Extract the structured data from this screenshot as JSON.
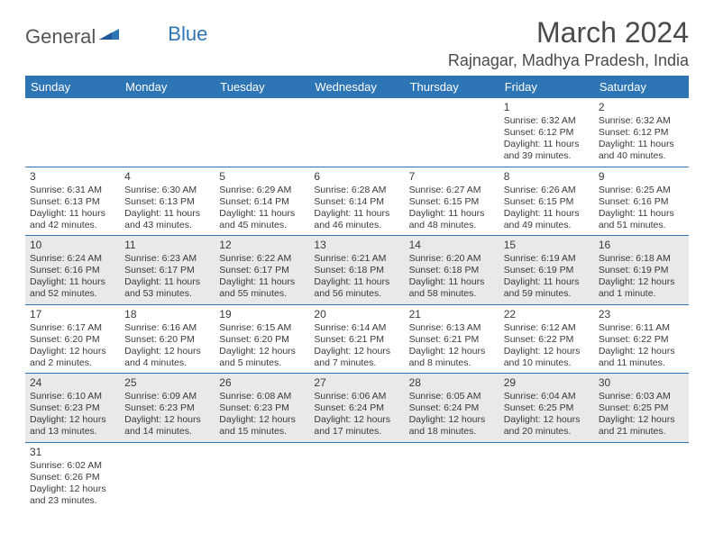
{
  "logo": {
    "text1": "General",
    "text2": "Blue"
  },
  "title": "March 2024",
  "location": "Rajnagar, Madhya Pradesh, India",
  "colors": {
    "header_bg": "#2e75b6",
    "header_text": "#ffffff",
    "row_alt_bg": "#e9e9e9",
    "border": "#2e75b6",
    "text": "#3a3a3a",
    "logo_gray": "#555555",
    "logo_blue": "#2e75b6"
  },
  "typography": {
    "title_fontsize": 32,
    "location_fontsize": 18,
    "dayheader_fontsize": 13,
    "cell_fontsize": 10.5,
    "daynum_fontsize": 12
  },
  "day_headers": [
    "Sunday",
    "Monday",
    "Tuesday",
    "Wednesday",
    "Thursday",
    "Friday",
    "Saturday"
  ],
  "weeks": [
    [
      null,
      null,
      null,
      null,
      null,
      {
        "n": "1",
        "sr": "6:32 AM",
        "ss": "6:12 PM",
        "dl": "11 hours and 39 minutes."
      },
      {
        "n": "2",
        "sr": "6:32 AM",
        "ss": "6:12 PM",
        "dl": "11 hours and 40 minutes."
      }
    ],
    [
      {
        "n": "3",
        "sr": "6:31 AM",
        "ss": "6:13 PM",
        "dl": "11 hours and 42 minutes."
      },
      {
        "n": "4",
        "sr": "6:30 AM",
        "ss": "6:13 PM",
        "dl": "11 hours and 43 minutes."
      },
      {
        "n": "5",
        "sr": "6:29 AM",
        "ss": "6:14 PM",
        "dl": "11 hours and 45 minutes."
      },
      {
        "n": "6",
        "sr": "6:28 AM",
        "ss": "6:14 PM",
        "dl": "11 hours and 46 minutes."
      },
      {
        "n": "7",
        "sr": "6:27 AM",
        "ss": "6:15 PM",
        "dl": "11 hours and 48 minutes."
      },
      {
        "n": "8",
        "sr": "6:26 AM",
        "ss": "6:15 PM",
        "dl": "11 hours and 49 minutes."
      },
      {
        "n": "9",
        "sr": "6:25 AM",
        "ss": "6:16 PM",
        "dl": "11 hours and 51 minutes."
      }
    ],
    [
      {
        "n": "10",
        "sr": "6:24 AM",
        "ss": "6:16 PM",
        "dl": "11 hours and 52 minutes."
      },
      {
        "n": "11",
        "sr": "6:23 AM",
        "ss": "6:17 PM",
        "dl": "11 hours and 53 minutes."
      },
      {
        "n": "12",
        "sr": "6:22 AM",
        "ss": "6:17 PM",
        "dl": "11 hours and 55 minutes."
      },
      {
        "n": "13",
        "sr": "6:21 AM",
        "ss": "6:18 PM",
        "dl": "11 hours and 56 minutes."
      },
      {
        "n": "14",
        "sr": "6:20 AM",
        "ss": "6:18 PM",
        "dl": "11 hours and 58 minutes."
      },
      {
        "n": "15",
        "sr": "6:19 AM",
        "ss": "6:19 PM",
        "dl": "11 hours and 59 minutes."
      },
      {
        "n": "16",
        "sr": "6:18 AM",
        "ss": "6:19 PM",
        "dl": "12 hours and 1 minute."
      }
    ],
    [
      {
        "n": "17",
        "sr": "6:17 AM",
        "ss": "6:20 PM",
        "dl": "12 hours and 2 minutes."
      },
      {
        "n": "18",
        "sr": "6:16 AM",
        "ss": "6:20 PM",
        "dl": "12 hours and 4 minutes."
      },
      {
        "n": "19",
        "sr": "6:15 AM",
        "ss": "6:20 PM",
        "dl": "12 hours and 5 minutes."
      },
      {
        "n": "20",
        "sr": "6:14 AM",
        "ss": "6:21 PM",
        "dl": "12 hours and 7 minutes."
      },
      {
        "n": "21",
        "sr": "6:13 AM",
        "ss": "6:21 PM",
        "dl": "12 hours and 8 minutes."
      },
      {
        "n": "22",
        "sr": "6:12 AM",
        "ss": "6:22 PM",
        "dl": "12 hours and 10 minutes."
      },
      {
        "n": "23",
        "sr": "6:11 AM",
        "ss": "6:22 PM",
        "dl": "12 hours and 11 minutes."
      }
    ],
    [
      {
        "n": "24",
        "sr": "6:10 AM",
        "ss": "6:23 PM",
        "dl": "12 hours and 13 minutes."
      },
      {
        "n": "25",
        "sr": "6:09 AM",
        "ss": "6:23 PM",
        "dl": "12 hours and 14 minutes."
      },
      {
        "n": "26",
        "sr": "6:08 AM",
        "ss": "6:23 PM",
        "dl": "12 hours and 15 minutes."
      },
      {
        "n": "27",
        "sr": "6:06 AM",
        "ss": "6:24 PM",
        "dl": "12 hours and 17 minutes."
      },
      {
        "n": "28",
        "sr": "6:05 AM",
        "ss": "6:24 PM",
        "dl": "12 hours and 18 minutes."
      },
      {
        "n": "29",
        "sr": "6:04 AM",
        "ss": "6:25 PM",
        "dl": "12 hours and 20 minutes."
      },
      {
        "n": "30",
        "sr": "6:03 AM",
        "ss": "6:25 PM",
        "dl": "12 hours and 21 minutes."
      }
    ],
    [
      {
        "n": "31",
        "sr": "6:02 AM",
        "ss": "6:26 PM",
        "dl": "12 hours and 23 minutes."
      },
      null,
      null,
      null,
      null,
      null,
      null
    ]
  ],
  "labels": {
    "sunrise": "Sunrise: ",
    "sunset": "Sunset: ",
    "daylight": "Daylight: "
  }
}
